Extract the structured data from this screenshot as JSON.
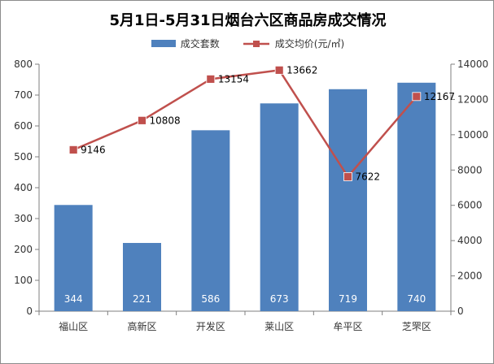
{
  "chart_data": {
    "type": "bar+line",
    "title": "5月1日-5月31日烟台六区商品房成交情况",
    "categories": [
      "福山区",
      "高新区",
      "开发区",
      "莱山区",
      "牟平区",
      "芝罘区"
    ],
    "series": [
      {
        "name": "成交套数",
        "type": "bar",
        "axis": "left",
        "values": [
          344,
          221,
          586,
          673,
          719,
          740
        ],
        "color": "#4f81bd"
      },
      {
        "name": "成交均价(元/㎡)",
        "type": "line",
        "axis": "right",
        "values": [
          9146,
          10808,
          13154,
          13662,
          7622,
          12167
        ],
        "color": "#c0504d"
      }
    ],
    "ylim_left": [
      0,
      800
    ],
    "yticks_left": [
      0,
      100,
      200,
      300,
      400,
      500,
      600,
      700,
      800
    ],
    "ylim_right": [
      0,
      14000
    ],
    "yticks_right": [
      0,
      2000,
      4000,
      6000,
      8000,
      10000,
      12000,
      14000
    ],
    "grid": false,
    "legend_position": "top"
  }
}
